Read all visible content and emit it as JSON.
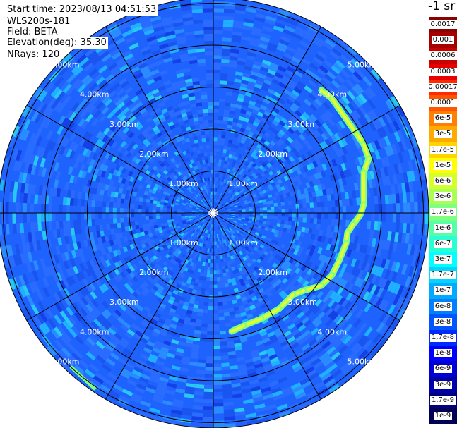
{
  "info": {
    "start_time": "Start time: 2023/08/13 04:51:53",
    "instrument": "WLS200s-181",
    "field": "Field: BETA",
    "elevation": "Elevation(deg): 35.30",
    "nrays": "NRays: 120"
  },
  "ppi": {
    "ring_labels": [
      "1.00km",
      "2.00km",
      "3.00km",
      "4.00km",
      "5.00km"
    ],
    "ring_km": [
      1,
      2,
      3,
      4,
      5
    ],
    "radial_lines": 12,
    "background_color": "#1f63ff"
  },
  "colorbar": {
    "unit": "-1 sr",
    "labels": [
      "0.0017",
      "0.001",
      "0.0006",
      "0.0003",
      "0.00017",
      "0.0001",
      "6e-5",
      "3e-5",
      "1.7e-5",
      "1e-5",
      "6e-6",
      "3e-6",
      "1.7e-6",
      "1e-6",
      "6e-7",
      "3e-7",
      "1.7e-7",
      "1e-7",
      "6e-8",
      "3e-8",
      "1.7e-8",
      "1e-8",
      "6e-9",
      "3e-9",
      "1.7e-9",
      "1e-9"
    ],
    "colors": [
      "#8b0000",
      "#a50000",
      "#c80000",
      "#e60000",
      "#ff2a00",
      "#ff5500",
      "#ff7f00",
      "#ffaa00",
      "#ffd400",
      "#ffff00",
      "#d4ff2a",
      "#aaff55",
      "#7fff7f",
      "#55ffaa",
      "#2affd4",
      "#00ffff",
      "#00d4ff",
      "#00aaff",
      "#007fff",
      "#0055ff",
      "#002aff",
      "#0000ff",
      "#0000d4",
      "#0000aa",
      "#00007f",
      "#000055"
    ]
  }
}
